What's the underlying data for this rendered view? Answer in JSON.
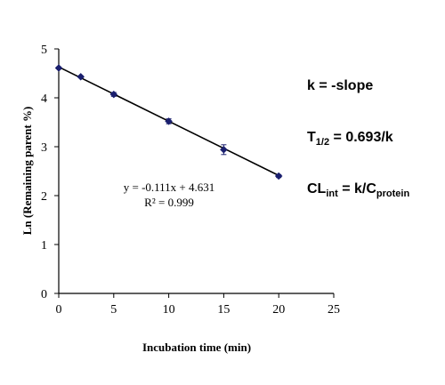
{
  "chart_data": {
    "type": "scatter",
    "xlabel": "Incubation time (min)",
    "ylabel": "Ln (Remaining parent %)",
    "xlim": [
      0,
      25
    ],
    "ylim": [
      0,
      5
    ],
    "xticks": [
      "0",
      "5",
      "10",
      "15",
      "20",
      "25"
    ],
    "yticks": [
      "0",
      "1",
      "2",
      "3",
      "4",
      "5"
    ],
    "grid": false,
    "legend": "none",
    "series": [
      {
        "x": [
          0,
          2,
          5,
          10,
          15,
          20
        ],
        "y": [
          4.61,
          4.43,
          4.07,
          3.52,
          2.94,
          2.4
        ],
        "y_error": [
          0.02,
          0.02,
          0.04,
          0.05,
          0.1,
          0.03
        ],
        "marker": "diamond",
        "color": "#1a1f6e"
      }
    ],
    "fit": {
      "slope": -0.111,
      "intercept": 4.631,
      "x_range": [
        0,
        20
      ],
      "color": "#000000"
    },
    "annotations": [
      "y = -0.111x + 4.631",
      "R² = 0.999"
    ]
  },
  "equations": {
    "k_prefix": "k = -slope",
    "t_main": "T",
    "t_sub": "1/2",
    "t_rest": " = 0.693/k",
    "cl_main": "CL",
    "cl_sub": "int",
    "cl_mid": " = k/C",
    "cl_sub2": "protein"
  }
}
